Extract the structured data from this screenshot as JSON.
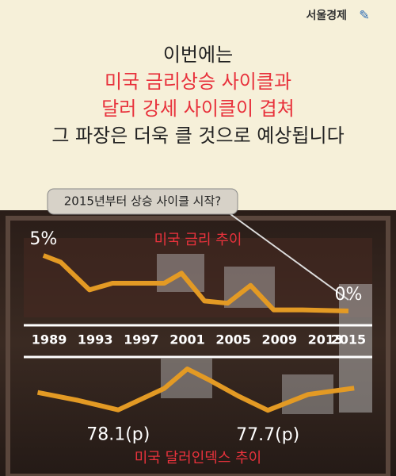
{
  "header": {
    "logo": "서울경제",
    "lines": [
      "이번에는",
      "미국 금리상승 사이클과",
      "달러 강세 사이클이 겹쳐",
      "그 파장은 더욱 클 것으로 예상됩니다"
    ],
    "line_colors": [
      "#222222",
      "#e8323c",
      "#e8323c",
      "#222222"
    ]
  },
  "callout": "2015년부터 상승 사이클 시작?",
  "chart_data": [
    {
      "type": "line",
      "title": "미국 금리 추이",
      "x": [
        1988.5,
        1990,
        1992.5,
        1994.5,
        1997,
        1999,
        2000.5,
        2002.5,
        2004.5,
        2006.5,
        2008.5,
        2011,
        2015
      ],
      "values": [
        5,
        4.4,
        1.9,
        2.5,
        2.5,
        2.5,
        3.4,
        0.9,
        0.7,
        2.3,
        0.1,
        0.1,
        0
      ],
      "value_labels": [
        "5%",
        null,
        null,
        null,
        null,
        null,
        null,
        null,
        null,
        null,
        null,
        null,
        "0%"
      ],
      "color": "#e39a24",
      "xlim": [
        1987,
        2017
      ],
      "xticks": [
        1989,
        1993,
        1997,
        2001,
        2005,
        2009,
        2013,
        2015
      ],
      "ylim": [
        0,
        5
      ]
    },
    {
      "type": "line",
      "title": "미국 달러인덱스 추이",
      "x": [
        1988,
        1991.5,
        1995,
        1999,
        2001,
        2003,
        2005.5,
        2008,
        2011.5,
        2015.5
      ],
      "values": [
        93.8,
        86.7,
        78.1,
        97.4,
        115,
        104.5,
        90.2,
        77.7,
        92,
        97.7
      ],
      "value_labels": [
        null,
        null,
        "78.1(p)",
        null,
        null,
        null,
        null,
        "77.7(p)",
        null,
        null
      ],
      "color": "#e39a24",
      "xlim": [
        1987,
        2017
      ],
      "ylim": [
        70,
        120
      ]
    }
  ]
}
